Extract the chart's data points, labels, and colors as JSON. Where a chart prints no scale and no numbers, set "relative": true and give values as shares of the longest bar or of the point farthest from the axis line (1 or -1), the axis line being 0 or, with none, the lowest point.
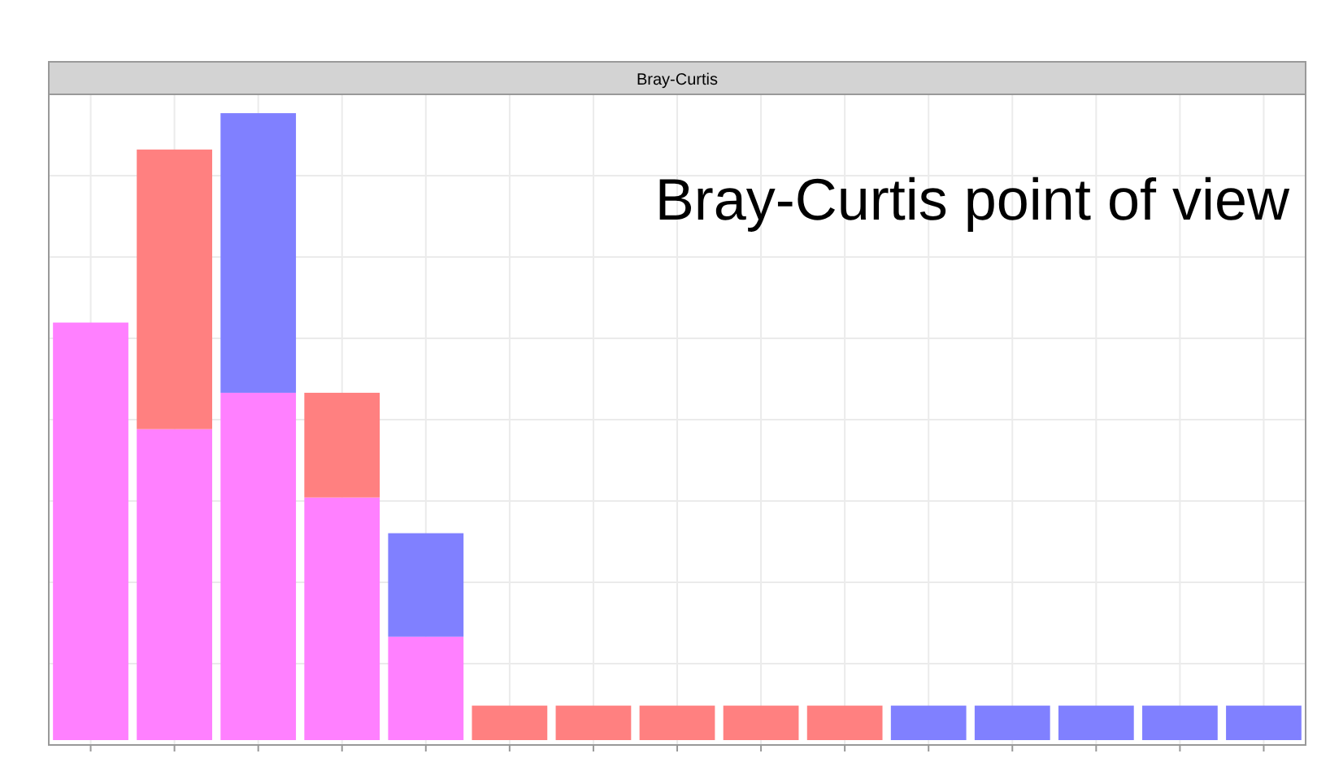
{
  "chart_data": {
    "type": "bar",
    "title": "Bray-Curtis",
    "stacked": true,
    "relative": true,
    "grid": true,
    "annotations": [
      "Bray-Curtis point of view"
    ],
    "categories": [
      null,
      null,
      null,
      null,
      null,
      null,
      null,
      null,
      null,
      null,
      null,
      null,
      null,
      null,
      null
    ],
    "series": [
      {
        "color": "#ff80ff",
        "values": [
          0.666,
          0.496,
          0.554,
          0.387,
          0.165,
          0,
          0,
          0,
          0,
          0,
          0,
          0,
          0,
          0,
          0
        ]
      },
      {
        "color": "#ff8080",
        "values": [
          0,
          0.446,
          0,
          0.167,
          0,
          0.055,
          0.055,
          0.055,
          0.055,
          0.055,
          0,
          0,
          0,
          0,
          0
        ]
      },
      {
        "color": "#8080ff",
        "values": [
          0,
          0,
          0.446,
          0,
          0.165,
          0,
          0,
          0,
          0,
          0,
          0.055,
          0.055,
          0.055,
          0.055,
          0.055
        ]
      }
    ]
  }
}
